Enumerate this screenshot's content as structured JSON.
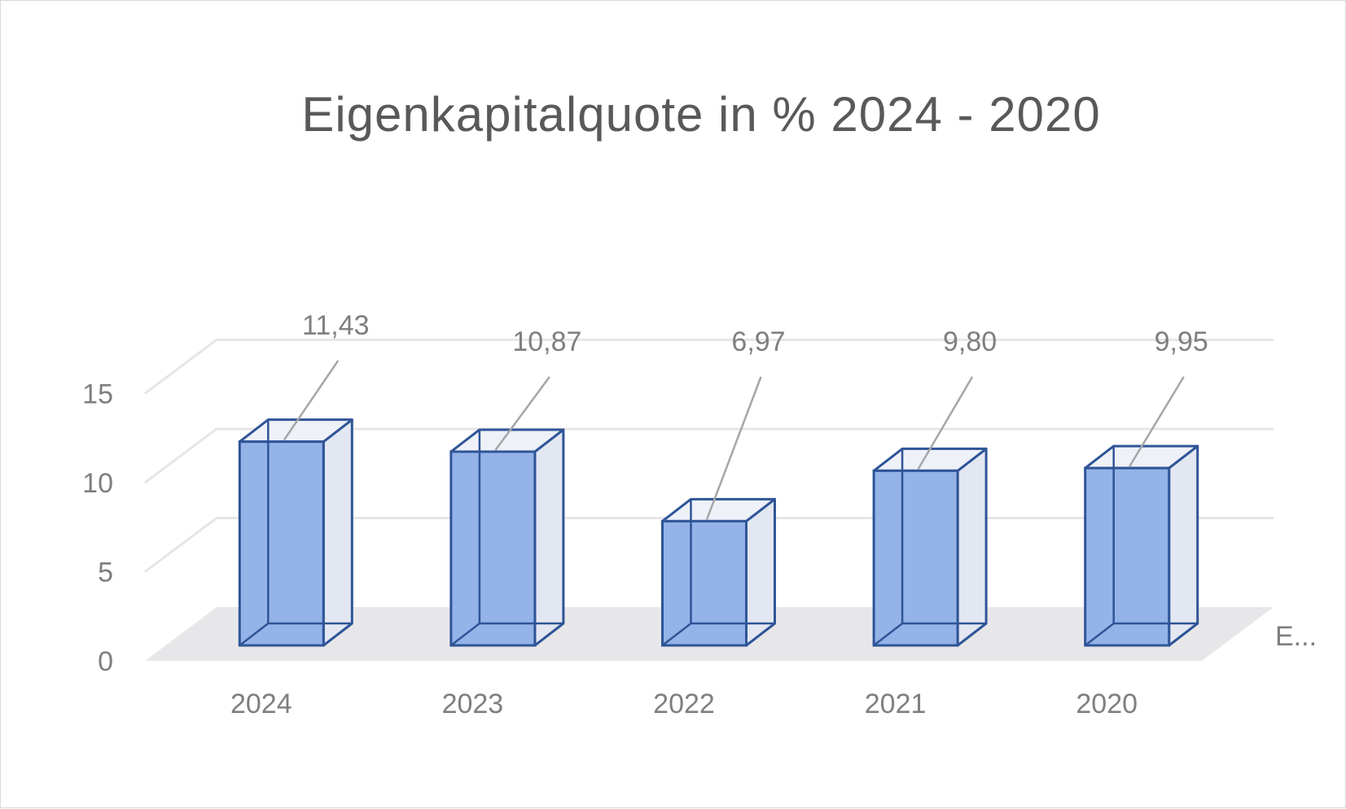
{
  "chart_data": {
    "type": "bar",
    "style": "3d-column",
    "title": "Eigenkapitalquote in % 2024 - 2020",
    "categories": [
      "2024",
      "2023",
      "2022",
      "2021",
      "2020"
    ],
    "values": [
      11.43,
      10.87,
      6.97,
      9.8,
      9.95
    ],
    "data_labels": [
      "11,43",
      "10,87",
      "6,97",
      "9,80",
      "9,95"
    ],
    "y_ticks": [
      "0",
      "5",
      "10",
      "15"
    ],
    "ylim": [
      0,
      15
    ],
    "depth_axis_label": "E...",
    "grid": true,
    "legend": "none",
    "colors": {
      "bar_front": "#92b1e8",
      "bar_edge": "#2f5597",
      "bar_side": "#e3e7f1",
      "floor": "#e7e7ea",
      "grid": "#e6e6e6",
      "leader": "#a6a6a6",
      "text": "#7f7f7f",
      "title": "#595959"
    }
  }
}
